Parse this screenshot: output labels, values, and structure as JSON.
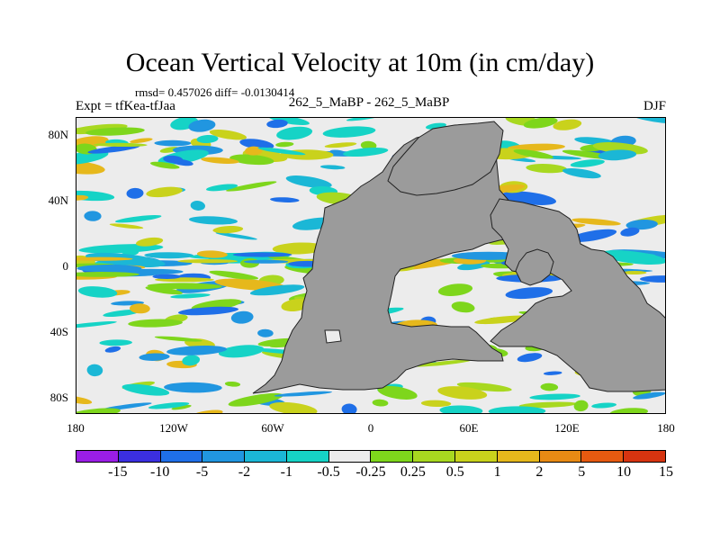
{
  "title": "Ocean Vertical Velocity at 10m (in cm/day)",
  "stats": "rmsd= 0.457026 diff= -0.0130414",
  "left_label": "Expt = tfKea-tfJaa",
  "center_label": "262_5_MaBP - 262_5_MaBP",
  "right_label": "DJF",
  "y_labels": [
    "80N",
    "40N",
    "0",
    "40S",
    "80S"
  ],
  "x_labels": [
    "180",
    "120W",
    "60W",
    "0",
    "60E",
    "120E",
    "180"
  ],
  "legend": {
    "colors": [
      "#9a1ee6",
      "#3b2fe0",
      "#1f6fe8",
      "#2196e0",
      "#1bb7d6",
      "#16d3c6",
      "#ececec",
      "#7ed61c",
      "#a8d820",
      "#c9d21c",
      "#e6b81c",
      "#e88a14",
      "#e65a10",
      "#d63410"
    ],
    "labels": [
      "-15",
      "-10",
      "-5",
      "-2",
      "-1",
      "-0.5",
      "-0.25",
      "0.25",
      "0.5",
      "1",
      "2",
      "5",
      "10",
      "15"
    ]
  },
  "land_color": "#9b9b9b"
}
